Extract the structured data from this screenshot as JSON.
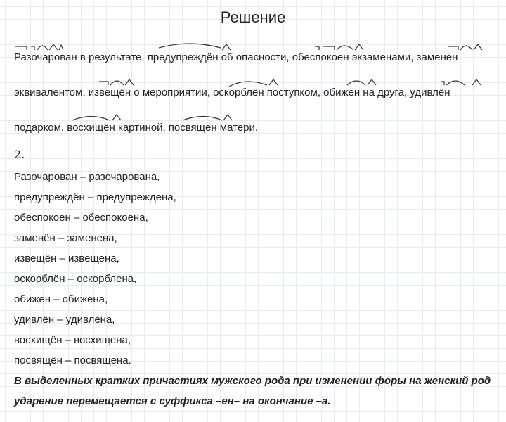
{
  "title": "Решение",
  "part1": {
    "lines": [
      "Разочарован в результате, предупреждён об опасности, обеспокоен экзаменами, заменён",
      "эквивалентом, извещён о мероприятии, оскорблён поступком, обижен на друга, удивлён",
      "подарком, восхищён картиной, посвящён матери."
    ]
  },
  "part2": {
    "number": "2.",
    "pairs": [
      "Разочарован – разочарована,",
      "предупреждён – предупреждена,",
      "обеспокоен – обеспокоена,",
      "заменён – заменена,",
      "извещён – извещена,",
      "оскорблён – оскорблена,",
      "обижен – обижена,",
      "удивлён – удивлена,",
      "восхищён – восхищена,",
      "посвящён – посвящена."
    ],
    "conclusion": [
      "В выделенных кратких причастиях мужского рода при изменении форы на женский род",
      "ударение перемещается с суффикса –ен– на окончание –а."
    ]
  }
}
